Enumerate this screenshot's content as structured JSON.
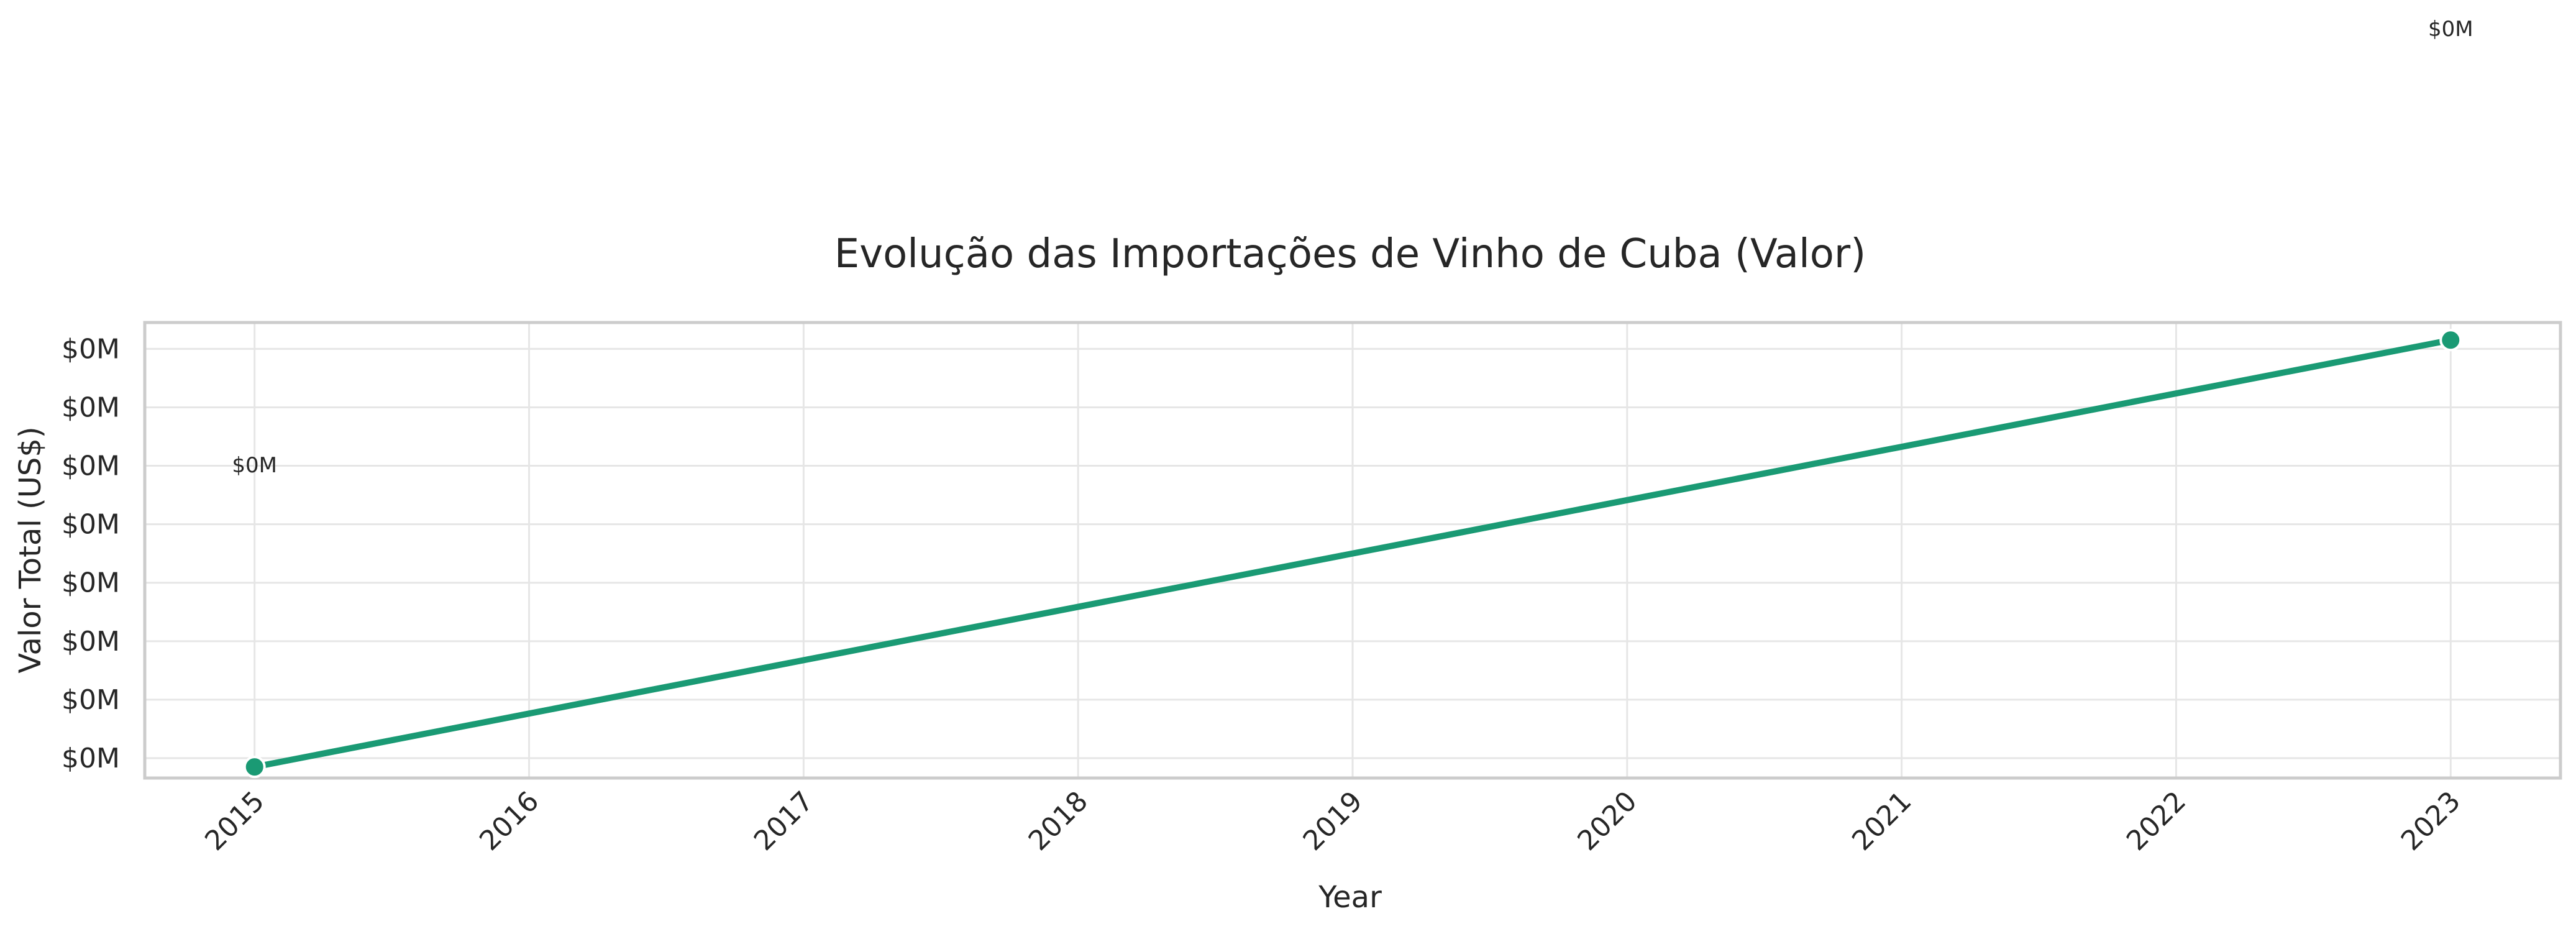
{
  "chart_data": {
    "type": "line",
    "title": "Evolução das Importações de Vinho de Cuba (Valor)",
    "xlabel": "Year",
    "ylabel": "Valor Total (US$)",
    "x": [
      2015,
      2016,
      2017,
      2018,
      2019,
      2020,
      2021,
      2022,
      2023
    ],
    "x_tick_labels": [
      "2015",
      "2016",
      "2017",
      "2018",
      "2019",
      "2020",
      "2021",
      "2022",
      "2023"
    ],
    "y_tick_labels": [
      "$0M",
      "$0M",
      "$0M",
      "$0M",
      "$0M",
      "$0M",
      "$0M",
      "$0M"
    ],
    "y_ticks": [
      1e-05,
      2e-05,
      3e-05,
      4e-05,
      5e-05,
      6e-05,
      7e-05,
      8e-05
    ],
    "ylim": [
      6.6e-06,
      8.45e-05
    ],
    "xlim": [
      2014.6,
      2023.4
    ],
    "series": [
      {
        "x": [
          2015,
          2023
        ],
        "values": [
          8.5e-06,
          8.15e-05
        ],
        "data_labels": [
          "$0M",
          "$0M"
        ],
        "color": "#1a9a74"
      }
    ],
    "grid": true,
    "x_tick_rotation": 45
  }
}
